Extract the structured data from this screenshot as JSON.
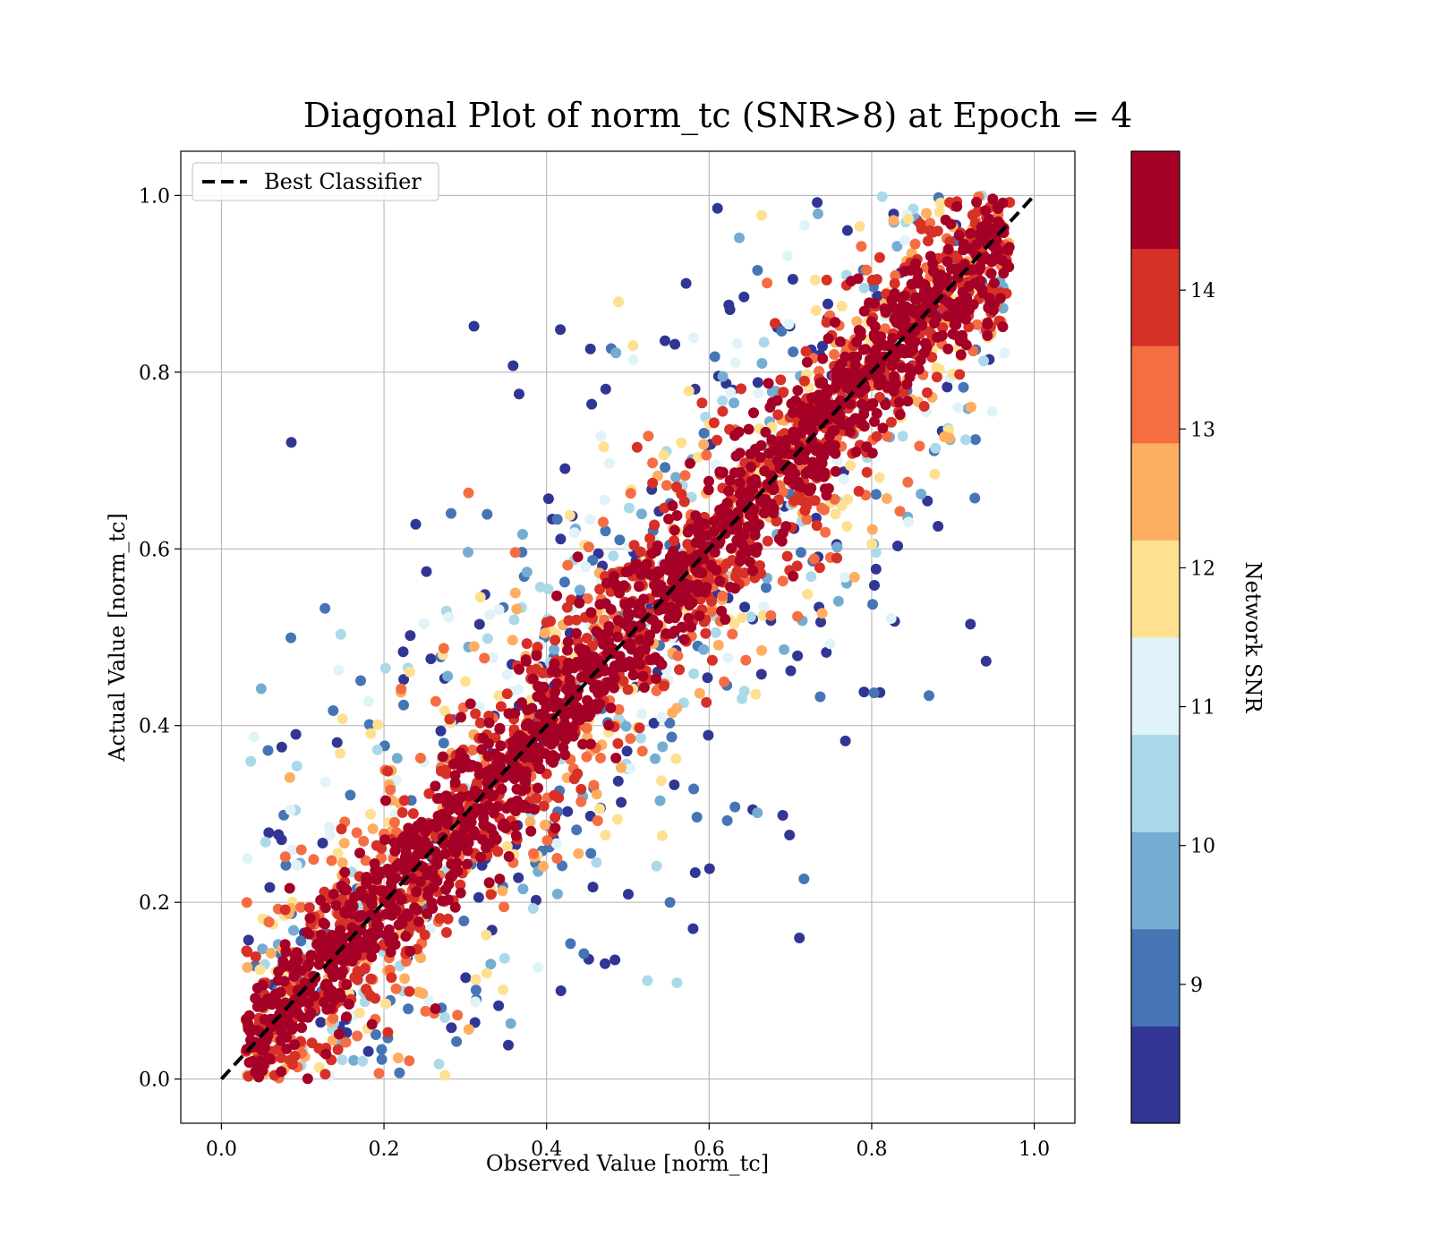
{
  "chart_data": {
    "type": "scatter",
    "title": "Diagonal Plot of norm_tc (SNR>8) at Epoch = 4",
    "xlabel": "Observed Value [norm_tc]",
    "ylabel": "Actual Value [norm_tc]",
    "xlim": [
      -0.05,
      1.05
    ],
    "ylim": [
      -0.05,
      1.05
    ],
    "x_ticks": [
      "0.0",
      "0.2",
      "0.4",
      "0.6",
      "0.8",
      "1.0"
    ],
    "y_ticks": [
      "0.0",
      "0.2",
      "0.4",
      "0.6",
      "0.8",
      "1.0"
    ],
    "grid": true,
    "legend": {
      "position": "top-left",
      "entries": [
        {
          "label": "Best Classifier",
          "style": "black dashed line"
        }
      ]
    },
    "reference_line": {
      "label": "Best Classifier",
      "x": [
        0.0,
        1.0
      ],
      "y": [
        0.0,
        1.0
      ],
      "color": "#000000",
      "style": "dashed"
    },
    "colorbar": {
      "label": "Network SNR",
      "range": [
        8.0,
        15.0
      ],
      "ticks": [
        "9",
        "10",
        "11",
        "12",
        "13",
        "14"
      ],
      "levels": 10,
      "colors": [
        "#313695",
        "#4575b4",
        "#74add1",
        "#abd9e9",
        "#e0f3f8",
        "#fee090",
        "#fdae61",
        "#f46d43",
        "#d73027",
        "#a50026"
      ]
    },
    "series": [
      {
        "point_color_map": "RdYlBu_r by Network SNR",
        "distribution": "dense band along y = x; high-SNR (dark red) points concentrated near the diagonal, low-SNR (blue) points scattered away from it; y values clipped to [0, 1]",
        "x_range": [
          0.03,
          0.97
        ],
        "y_range": [
          0.0,
          1.0
        ]
      }
    ]
  }
}
